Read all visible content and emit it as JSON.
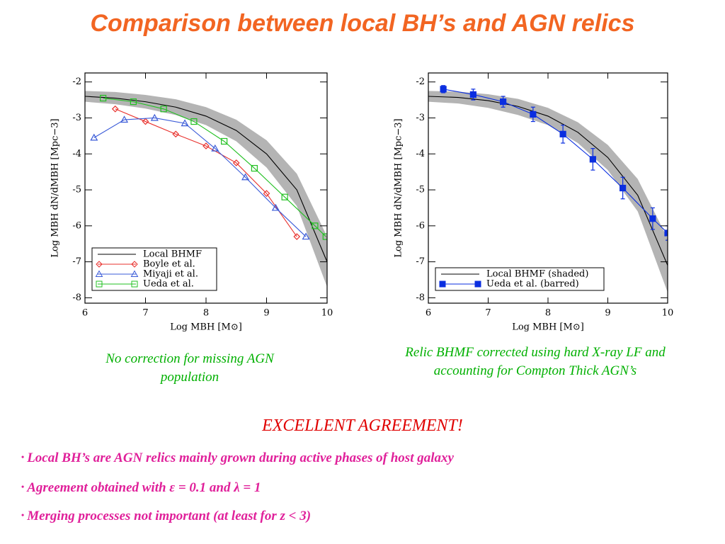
{
  "title": "Comparison between local BH’s and AGN relics",
  "chart_data": [
    {
      "type": "line",
      "x_label": "Log MBH [M⊙]",
      "y_label": "Log MBH dN/dMBH [Mpc−3]",
      "xlim": [
        6,
        10
      ],
      "ylim": [
        -8.15,
        -1.75
      ],
      "xticks": [
        6,
        7,
        8,
        9,
        10
      ],
      "yticks": [
        -8,
        -7,
        -6,
        -5,
        -4,
        -3,
        -2
      ],
      "legend": "lower left",
      "series": [
        {
          "name": "Local BHMF",
          "color": "#000000",
          "marker": "none",
          "x": [
            6,
            6.5,
            7,
            7.5,
            8,
            8.5,
            9,
            9.5,
            10
          ],
          "values": [
            -2.4,
            -2.45,
            -2.55,
            -2.7,
            -2.95,
            -3.35,
            -4.0,
            -5.0,
            -7.0
          ],
          "band_high": [
            -2.25,
            -2.28,
            -2.36,
            -2.48,
            -2.7,
            -3.05,
            -3.62,
            -4.55,
            -6.3
          ],
          "band_low": [
            -2.55,
            -2.62,
            -2.74,
            -2.92,
            -3.2,
            -3.65,
            -4.38,
            -5.45,
            -7.7
          ]
        },
        {
          "name": "Boyle et al.",
          "color": "#e8302c",
          "marker": "diamond",
          "filled": false,
          "x": [
            6.5,
            7,
            7.5,
            8,
            8.5,
            9,
            9.5
          ],
          "values": [
            -2.75,
            -3.1,
            -3.45,
            -3.78,
            -4.25,
            -5.1,
            -6.3
          ]
        },
        {
          "name": "Miyaji et al.",
          "color": "#3b5bd8",
          "marker": "triangle",
          "filled": false,
          "x": [
            6.15,
            6.65,
            7.15,
            7.65,
            8.15,
            8.65,
            9.15,
            9.65
          ],
          "values": [
            -3.55,
            -3.05,
            -3.0,
            -3.15,
            -3.85,
            -4.65,
            -5.5,
            -6.3
          ]
        },
        {
          "name": "Ueda et al.",
          "color": "#22c022",
          "marker": "square",
          "filled": false,
          "x": [
            6.3,
            6.8,
            7.3,
            7.8,
            8.3,
            8.8,
            9.3,
            9.8,
            9.98
          ],
          "values": [
            -2.45,
            -2.55,
            -2.75,
            -3.1,
            -3.65,
            -4.4,
            -5.2,
            -6.0,
            -6.3
          ]
        }
      ]
    },
    {
      "type": "line",
      "x_label": "Log MBH [M⊙]",
      "y_label": "Log MBH dN/dMBH [Mpc−3]",
      "xlim": [
        6,
        10
      ],
      "ylim": [
        -8.15,
        -1.75
      ],
      "xticks": [
        6,
        7,
        8,
        9,
        10
      ],
      "yticks": [
        -8,
        -7,
        -6,
        -5,
        -4,
        -3,
        -2
      ],
      "legend": "lower left",
      "series": [
        {
          "name": "Local BHMF (shaded)",
          "color": "#000000",
          "marker": "none",
          "x": [
            6,
            6.5,
            7,
            7.5,
            8,
            8.5,
            9,
            9.5,
            10
          ],
          "values": [
            -2.4,
            -2.43,
            -2.52,
            -2.68,
            -2.95,
            -3.4,
            -4.1,
            -5.15,
            -7.1
          ],
          "band_high": [
            -2.25,
            -2.27,
            -2.34,
            -2.47,
            -2.72,
            -3.12,
            -3.75,
            -4.7,
            -6.35
          ],
          "band_low": [
            -2.55,
            -2.6,
            -2.72,
            -2.92,
            -3.2,
            -3.7,
            -4.45,
            -5.6,
            -7.85
          ]
        },
        {
          "name": "Ueda et al. (barred)",
          "color": "#0a2ee0",
          "marker": "square",
          "filled": true,
          "x": [
            6.25,
            6.75,
            7.25,
            7.75,
            8.25,
            8.75,
            9.25,
            9.75,
            10
          ],
          "values": [
            -2.2,
            -2.35,
            -2.55,
            -2.9,
            -3.45,
            -4.15,
            -4.95,
            -5.8,
            -6.2
          ],
          "errors": [
            0.1,
            0.15,
            0.15,
            0.2,
            0.25,
            0.3,
            0.3,
            0.3,
            0.2
          ]
        }
      ]
    }
  ],
  "captions": [
    "No correction for missing AGN population",
    "Relic BHMF corrected using hard X-ray LF and accounting for Compton Thick AGN’s"
  ],
  "headline": "EXCELLENT AGREEMENT!",
  "bullets": [
    "Local BH’s are AGN relics mainly grown during active phases of host galaxy",
    "Agreement obtained with ε = 0.1 and λ = 1",
    "Merging processes not important (at least for z < 3)"
  ]
}
